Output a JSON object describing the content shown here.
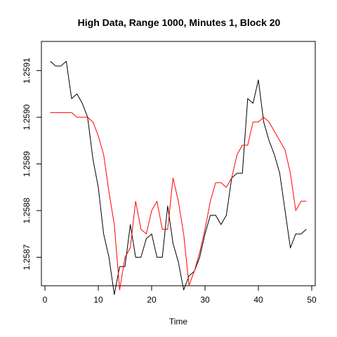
{
  "chart_data": {
    "type": "line",
    "title": "High Data, Range 1000, Minutes 1, Block 20",
    "xlabel": "Time",
    "ylabel": "",
    "xlim": [
      0,
      50
    ],
    "ylim": [
      1.25866,
      1.25914
    ],
    "xticks": [
      0,
      10,
      20,
      30,
      40,
      50
    ],
    "yticks": [
      "1.2587",
      "1.2588",
      "1.2589",
      "1.2590",
      "1.2591"
    ],
    "ytick_values": [
      1.2587,
      1.2588,
      1.2589,
      1.259,
      1.2591
    ],
    "grid": false,
    "series": [
      {
        "color": "#000000",
        "x": [
          1,
          2,
          3,
          4,
          5,
          6,
          7,
          8,
          9,
          10,
          11,
          12,
          13,
          14,
          15,
          16,
          17,
          18,
          19,
          20,
          21,
          22,
          23,
          24,
          25,
          26,
          27,
          28,
          29,
          30,
          31,
          32,
          33,
          34,
          35,
          36,
          37,
          38,
          39,
          40,
          41,
          42,
          43,
          44,
          45,
          46,
          47,
          48,
          49
        ],
        "values": [
          1.25912,
          1.25911,
          1.25911,
          1.25912,
          1.25904,
          1.25905,
          1.25903,
          1.259,
          1.25891,
          1.25885,
          1.25875,
          1.2587,
          1.25862,
          1.25868,
          1.25868,
          1.25877,
          1.2587,
          1.2587,
          1.25874,
          1.25875,
          1.2587,
          1.2587,
          1.25881,
          1.25873,
          1.25869,
          1.25863,
          1.25866,
          1.25867,
          1.2587,
          1.25875,
          1.25879,
          1.25879,
          1.25877,
          1.25879,
          1.25887,
          1.25888,
          1.25888,
          1.25904,
          1.25903,
          1.25908,
          1.25899,
          1.25895,
          1.25892,
          1.25888,
          1.2588,
          1.25872,
          1.25875,
          1.25875,
          1.25876
        ]
      },
      {
        "color": "#ff0000",
        "x": [
          1,
          2,
          3,
          4,
          5,
          6,
          7,
          8,
          9,
          10,
          11,
          12,
          13,
          14,
          15,
          16,
          17,
          18,
          19,
          20,
          21,
          22,
          23,
          24,
          25,
          26,
          27,
          28,
          29,
          30,
          31,
          32,
          33,
          34,
          35,
          36,
          37,
          38,
          39,
          40,
          41,
          42,
          43,
          44,
          45,
          46,
          47,
          48,
          49
        ],
        "values": [
          1.25901,
          1.25901,
          1.25901,
          1.25901,
          1.25901,
          1.259,
          1.259,
          1.259,
          1.25899,
          1.25896,
          1.25892,
          1.25884,
          1.25877,
          1.25863,
          1.2587,
          1.25872,
          1.25882,
          1.25876,
          1.25875,
          1.2588,
          1.25882,
          1.25876,
          1.25876,
          1.25887,
          1.25882,
          1.25875,
          1.25864,
          1.25867,
          1.25871,
          1.25876,
          1.25882,
          1.25886,
          1.25886,
          1.25885,
          1.25887,
          1.25892,
          1.25894,
          1.25894,
          1.25899,
          1.25899,
          1.259,
          1.25899,
          1.25897,
          1.25895,
          1.25893,
          1.25888,
          1.2588,
          1.25882,
          1.25882
        ]
      }
    ]
  }
}
